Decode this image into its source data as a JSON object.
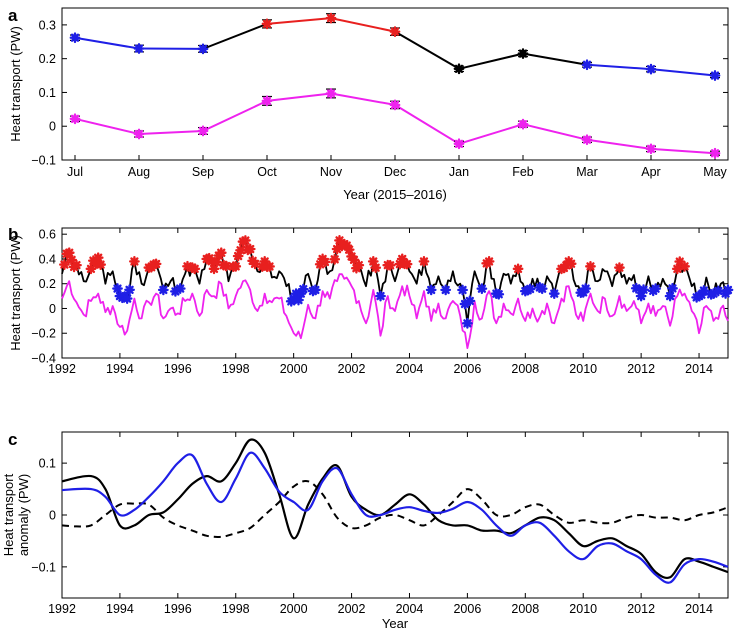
{
  "colors": {
    "black": "#000000",
    "blue": "#1f1fe6",
    "red": "#e8201f",
    "magenta": "#ee22ee",
    "errorbar": "#000000"
  },
  "panels": {
    "a": "a",
    "b": "b",
    "c": "c"
  },
  "chart_data": [
    {
      "panel": "a",
      "type": "line",
      "xlabel": "Year (2015–2016)",
      "ylabel": "Heat transport (PW)",
      "categories": [
        "Jul",
        "Aug",
        "Sep",
        "Oct",
        "Nov",
        "Dec",
        "Jan",
        "Feb",
        "Mar",
        "Apr",
        "May"
      ],
      "ylim": [
        -0.1,
        0.35
      ],
      "yticks": [
        -0.1,
        0,
        0.1,
        0.2,
        0.3
      ],
      "ytick_labels": [
        "−0.1",
        "0",
        "0.1",
        "0.2",
        "0.3"
      ],
      "series": [
        {
          "values": [
            0.262,
            0.23,
            0.229,
            0.303,
            0.32,
            0.28,
            0.17,
            0.215,
            0.182,
            0.169,
            0.15
          ],
          "errors": [
            0.008,
            0.01,
            0.01,
            0.012,
            0.013,
            0.011,
            0.008,
            0.009,
            0.007,
            0.008,
            0.006
          ],
          "marker_colors": [
            "blue",
            "blue",
            "blue",
            "red",
            "red",
            "red",
            "black",
            "black",
            "blue",
            "blue",
            "blue"
          ]
        },
        {
          "values": [
            0.022,
            -0.023,
            -0.014,
            0.075,
            0.097,
            0.063,
            -0.052,
            0.006,
            -0.04,
            -0.067,
            -0.08
          ],
          "errors": [
            0.008,
            0.009,
            0.01,
            0.013,
            0.013,
            0.011,
            0.008,
            0.009,
            0.008,
            0.008,
            0.006
          ],
          "color": "magenta"
        }
      ]
    },
    {
      "panel": "b",
      "type": "line",
      "xlabel": "",
      "ylabel": "Heat transport (PW)",
      "xlim": [
        1992,
        2015
      ],
      "ylim": [
        -0.4,
        0.65
      ],
      "xticks": [
        1992,
        1994,
        1996,
        1998,
        2000,
        2002,
        2004,
        2006,
        2008,
        2010,
        2012,
        2014
      ],
      "yticks": [
        -0.4,
        -0.2,
        0,
        0.2,
        0.4,
        0.6
      ],
      "ytick_labels": [
        "−0.4",
        "−0.2",
        "0",
        "0.2",
        "0.4",
        "0.6"
      ],
      "series": [
        {
          "color": "black",
          "markers": "monthly red (strong) / blue (weak)",
          "x": [
            1992.0,
            1992.25,
            1992.5,
            1992.75,
            1993.0,
            1993.25,
            1993.5,
            1993.75,
            1994.0,
            1994.25,
            1994.5,
            1994.75,
            1995.0,
            1995.25,
            1995.5,
            1995.75,
            1996.0,
            1996.25,
            1996.5,
            1996.75,
            1997.0,
            1997.25,
            1997.5,
            1997.75,
            1998.0,
            1998.25,
            1998.5,
            1998.75,
            1999.0,
            1999.25,
            1999.5,
            1999.75,
            2000.0,
            2000.25,
            2000.5,
            2000.75,
            2001.0,
            2001.25,
            2001.5,
            2001.75,
            2002.0,
            2002.25,
            2002.5,
            2002.75,
            2003.0,
            2003.25,
            2003.5,
            2003.75,
            2004.0,
            2004.25,
            2004.5,
            2004.75,
            2005.0,
            2005.25,
            2005.5,
            2005.75,
            2006.0,
            2006.25,
            2006.5,
            2006.75,
            2007.0,
            2007.25,
            2007.5,
            2007.75,
            2008.0,
            2008.25,
            2008.5,
            2008.75,
            2009.0,
            2009.25,
            2009.5,
            2009.75,
            2010.0,
            2010.25,
            2010.5,
            2010.75,
            2011.0,
            2011.25,
            2011.5,
            2011.75,
            2012.0,
            2012.25,
            2012.5,
            2012.75,
            2013.0,
            2013.25,
            2013.5,
            2013.75,
            2014.0,
            2014.25,
            2014.5,
            2014.75,
            2015.0
          ],
          "y": [
            0.28,
            0.45,
            0.35,
            0.22,
            0.32,
            0.41,
            0.2,
            0.3,
            0.1,
            0.08,
            0.38,
            0.2,
            0.33,
            0.36,
            0.15,
            0.22,
            0.18,
            0.28,
            0.33,
            0.2,
            0.4,
            0.32,
            0.45,
            0.22,
            0.34,
            0.54,
            0.48,
            0.3,
            0.38,
            0.25,
            0.3,
            0.18,
            0.08,
            0.12,
            0.28,
            0.15,
            0.4,
            0.3,
            0.48,
            0.52,
            0.42,
            0.35,
            0.18,
            0.38,
            0.1,
            0.35,
            0.22,
            0.4,
            0.3,
            0.2,
            0.38,
            0.15,
            0.26,
            0.15,
            0.3,
            0.2,
            -0.12,
            0.3,
            0.16,
            0.38,
            0.12,
            0.28,
            0.2,
            0.32,
            0.14,
            0.24,
            0.17,
            0.26,
            0.12,
            0.32,
            0.38,
            0.18,
            0.13,
            0.34,
            0.22,
            0.3,
            0.18,
            0.33,
            0.2,
            0.27,
            0.1,
            0.26,
            0.16,
            0.24,
            0.1,
            0.32,
            0.34,
            0.18,
            0.1,
            0.25,
            0.12,
            0.2,
            0.15
          ]
        },
        {
          "color": "magenta",
          "x": [
            1992.0,
            1992.25,
            1992.5,
            1992.75,
            1993.0,
            1993.25,
            1993.5,
            1993.75,
            1994.0,
            1994.25,
            1994.5,
            1994.75,
            1995.0,
            1995.25,
            1995.5,
            1995.75,
            1996.0,
            1996.25,
            1996.5,
            1996.75,
            1997.0,
            1997.25,
            1997.5,
            1997.75,
            1998.0,
            1998.25,
            1998.5,
            1998.75,
            1999.0,
            1999.25,
            1999.5,
            1999.75,
            2000.0,
            2000.25,
            2000.5,
            2000.75,
            2001.0,
            2001.25,
            2001.5,
            2001.75,
            2002.0,
            2002.25,
            2002.5,
            2002.75,
            2003.0,
            2003.25,
            2003.5,
            2003.75,
            2004.0,
            2004.25,
            2004.5,
            2004.75,
            2005.0,
            2005.25,
            2005.5,
            2005.75,
            2006.0,
            2006.25,
            2006.5,
            2006.75,
            2007.0,
            2007.25,
            2007.5,
            2007.75,
            2008.0,
            2008.25,
            2008.5,
            2008.75,
            2009.0,
            2009.25,
            2009.5,
            2009.75,
            2010.0,
            2010.25,
            2010.5,
            2010.75,
            2011.0,
            2011.25,
            2011.5,
            2011.75,
            2012.0,
            2012.25,
            2012.5,
            2012.75,
            2013.0,
            2013.25,
            2013.5,
            2013.75,
            2014.0,
            2014.25,
            2014.5,
            2014.75,
            2015.0
          ],
          "y": [
            0.08,
            0.22,
            0.05,
            -0.05,
            0.06,
            0.12,
            -0.03,
            0.02,
            -0.15,
            -0.18,
            0.08,
            -0.08,
            0.05,
            0.12,
            -0.08,
            0.0,
            -0.04,
            0.06,
            0.12,
            -0.06,
            0.15,
            0.1,
            0.2,
            0.0,
            0.1,
            0.22,
            0.15,
            -0.02,
            0.12,
            0.05,
            0.08,
            -0.06,
            -0.2,
            -0.24,
            0.03,
            -0.08,
            0.14,
            0.08,
            0.22,
            0.24,
            0.18,
            0.06,
            -0.12,
            0.15,
            -0.22,
            0.1,
            -0.02,
            0.18,
            0.1,
            -0.08,
            0.14,
            -0.1,
            0.04,
            -0.08,
            0.06,
            -0.06,
            -0.32,
            0.06,
            -0.08,
            0.14,
            -0.12,
            0.04,
            -0.04,
            0.08,
            -0.1,
            0.0,
            -0.07,
            0.04,
            -0.12,
            0.08,
            0.18,
            -0.05,
            -0.1,
            0.12,
            -0.02,
            0.08,
            -0.06,
            0.1,
            -0.02,
            0.06,
            -0.12,
            0.04,
            -0.06,
            0.02,
            -0.14,
            0.1,
            0.12,
            -0.02,
            -0.2,
            0.02,
            -0.1,
            0.0,
            -0.1
          ]
        }
      ]
    },
    {
      "panel": "c",
      "type": "line",
      "xlabel": "Year",
      "ylabel": "Heat transport anomaly (PW)",
      "ylabel_lines": [
        "Heat transport",
        "anomaly (PW)"
      ],
      "xlim": [
        1992,
        2015
      ],
      "ylim": [
        -0.16,
        0.16
      ],
      "xticks": [
        1992,
        1994,
        1996,
        1998,
        2000,
        2002,
        2004,
        2006,
        2008,
        2010,
        2012,
        2014
      ],
      "yticks": [
        -0.1,
        0,
        0.1
      ],
      "ytick_labels": [
        "−0.1",
        "0",
        "0.1"
      ],
      "series": [
        {
          "color": "black",
          "style": "solid",
          "x": [
            1992.0,
            1993.0,
            1993.5,
            1994.0,
            1994.5,
            1995.0,
            1995.5,
            1996.0,
            1996.5,
            1997.0,
            1997.5,
            1998.0,
            1998.5,
            1999.0,
            1999.5,
            2000.0,
            2000.5,
            2001.0,
            2001.5,
            2002.0,
            2002.5,
            2003.0,
            2003.5,
            2004.0,
            2004.5,
            2005.0,
            2005.5,
            2006.0,
            2006.5,
            2007.0,
            2007.5,
            2008.0,
            2008.5,
            2009.0,
            2009.5,
            2010.0,
            2010.5,
            2011.0,
            2011.5,
            2012.0,
            2012.5,
            2013.0,
            2013.5,
            2014.0,
            2014.5,
            2015.0
          ],
          "y": [
            0.065,
            0.075,
            0.05,
            -0.02,
            -0.02,
            0.0,
            0.005,
            0.03,
            0.06,
            0.075,
            0.065,
            0.1,
            0.145,
            0.12,
            0.04,
            -0.045,
            0.02,
            0.07,
            0.095,
            0.035,
            0.01,
            0.0,
            0.02,
            0.04,
            0.02,
            -0.01,
            -0.02,
            -0.02,
            -0.03,
            -0.03,
            -0.035,
            -0.02,
            -0.005,
            -0.01,
            -0.035,
            -0.06,
            -0.05,
            -0.045,
            -0.06,
            -0.075,
            -0.11,
            -0.12,
            -0.085,
            -0.09,
            -0.1,
            -0.11
          ]
        },
        {
          "color": "blue",
          "style": "solid",
          "x": [
            1992.0,
            1993.0,
            1993.5,
            1994.0,
            1994.5,
            1995.0,
            1995.5,
            1996.0,
            1996.5,
            1997.0,
            1997.5,
            1998.0,
            1998.5,
            1999.0,
            1999.5,
            2000.0,
            2000.5,
            2001.0,
            2001.5,
            2002.0,
            2002.5,
            2003.0,
            2003.5,
            2004.0,
            2004.5,
            2005.0,
            2005.5,
            2006.0,
            2006.5,
            2007.0,
            2007.5,
            2008.0,
            2008.5,
            2009.0,
            2009.5,
            2010.0,
            2010.5,
            2011.0,
            2011.5,
            2012.0,
            2012.5,
            2013.0,
            2013.5,
            2014.0,
            2014.5,
            2015.0
          ],
          "y": [
            0.048,
            0.05,
            0.035,
            0.0,
            0.01,
            0.035,
            0.065,
            0.1,
            0.115,
            0.06,
            0.025,
            0.07,
            0.12,
            0.09,
            0.045,
            0.025,
            0.01,
            0.065,
            0.09,
            0.04,
            0.0,
            0.0,
            0.01,
            0.015,
            0.008,
            0.004,
            0.012,
            0.025,
            0.01,
            -0.02,
            -0.04,
            -0.02,
            -0.015,
            -0.04,
            -0.07,
            -0.085,
            -0.06,
            -0.055,
            -0.07,
            -0.085,
            -0.115,
            -0.13,
            -0.095,
            -0.085,
            -0.09,
            -0.1
          ]
        },
        {
          "color": "black",
          "style": "dashed",
          "x": [
            1992.0,
            1992.5,
            1993.0,
            1993.5,
            1994.0,
            1994.5,
            1995.0,
            1995.5,
            1996.0,
            1996.5,
            1997.0,
            1997.5,
            1998.0,
            1998.5,
            1999.0,
            1999.5,
            2000.0,
            2000.5,
            2001.0,
            2001.5,
            2002.0,
            2002.5,
            2003.0,
            2003.5,
            2004.0,
            2004.5,
            2005.0,
            2005.5,
            2006.0,
            2006.5,
            2007.0,
            2007.5,
            2008.0,
            2008.5,
            2009.0,
            2009.5,
            2010.0,
            2010.5,
            2011.0,
            2011.5,
            2012.0,
            2012.5,
            2013.0,
            2013.5,
            2014.0,
            2014.5,
            2015.0
          ],
          "y": [
            -0.02,
            -0.022,
            -0.02,
            0.0,
            0.02,
            0.022,
            0.02,
            -0.005,
            -0.02,
            -0.03,
            -0.04,
            -0.042,
            -0.035,
            -0.025,
            0.0,
            0.025,
            0.055,
            0.065,
            0.04,
            -0.005,
            -0.025,
            -0.02,
            -0.005,
            0.0,
            -0.01,
            -0.02,
            0.0,
            0.025,
            0.05,
            0.03,
            0.0,
            0.0,
            0.015,
            0.02,
            0.0,
            -0.015,
            -0.01,
            -0.015,
            -0.015,
            -0.005,
            0.0,
            -0.005,
            -0.005,
            -0.01,
            0.0,
            0.005,
            0.015
          ]
        }
      ]
    }
  ]
}
